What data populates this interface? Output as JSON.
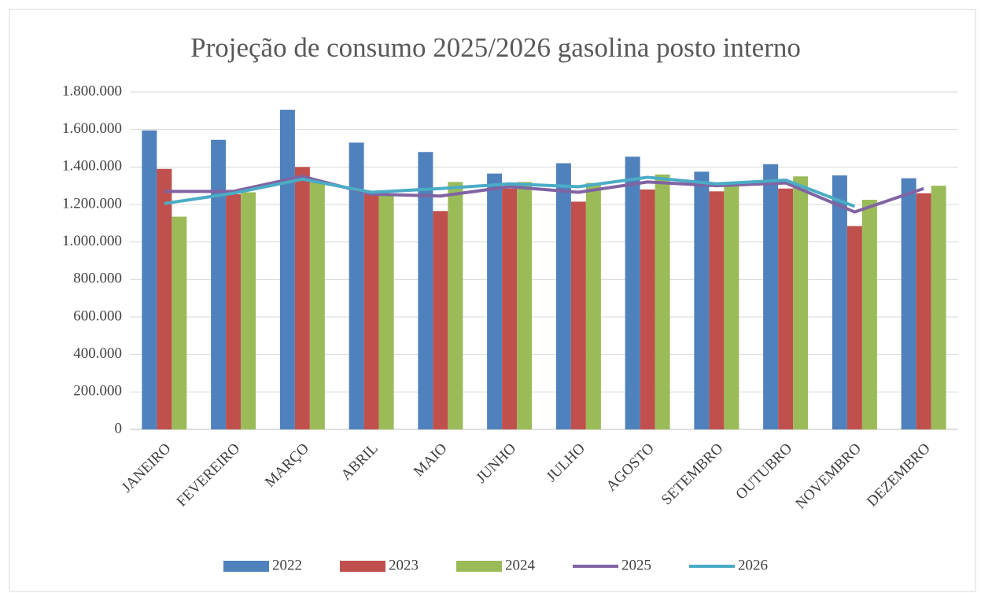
{
  "chart_data": {
    "type": "bar",
    "title": "Projeção de consumo 2025/2026 gasolina posto interno",
    "categories": [
      "JANEIRO",
      "FEVEREIRO",
      "MARÇO",
      "ABRIL",
      "MAIO",
      "JUNHO",
      "JULHO",
      "AGOSTO",
      "SETEMBRO",
      "OUTUBRO",
      "NOVEMBRO",
      "DEZEMBRO"
    ],
    "series": [
      {
        "name": "2022",
        "type": "bar",
        "color": "#4f81bd",
        "values": [
          1595000,
          1545000,
          1705000,
          1530000,
          1480000,
          1365000,
          1420000,
          1455000,
          1375000,
          1415000,
          1355000,
          1340000
        ]
      },
      {
        "name": "2023",
        "type": "bar",
        "color": "#c0504d",
        "values": [
          1390000,
          1255000,
          1400000,
          1255000,
          1165000,
          1285000,
          1215000,
          1280000,
          1270000,
          1285000,
          1085000,
          1260000
        ]
      },
      {
        "name": "2024",
        "type": "bar",
        "color": "#9bbb59",
        "values": [
          1135000,
          1265000,
          1320000,
          1255000,
          1320000,
          1320000,
          1315000,
          1360000,
          1300000,
          1350000,
          1225000,
          1300000
        ]
      },
      {
        "name": "2025",
        "type": "line",
        "color": "#8064a2",
        "values": [
          1270000,
          1270000,
          1350000,
          1255000,
          1245000,
          1295000,
          1265000,
          1320000,
          1300000,
          1315000,
          1160000,
          1285000
        ]
      },
      {
        "name": "2026",
        "type": "line",
        "color": "#4bacc6",
        "values": [
          1205000,
          1260000,
          1335000,
          1265000,
          1285000,
          1310000,
          1295000,
          1345000,
          1310000,
          1330000,
          1190000,
          null
        ]
      }
    ],
    "ylim": [
      0,
      1800000
    ],
    "yticks": [
      0,
      {
        "value": 200000,
        "label": "200.000"
      },
      {
        "value": 400000,
        "label": "400.000"
      },
      {
        "value": 600000,
        "label": "600.000"
      },
      {
        "value": 800000,
        "label": "800.000"
      },
      {
        "value": 1000000,
        "label": "1.000.000"
      },
      {
        "value": 1200000,
        "label": "1.200.000"
      },
      {
        "value": 1400000,
        "label": "1.400.000"
      },
      {
        "value": 1600000,
        "label": "1.600.000"
      },
      {
        "value": 1800000,
        "label": "1.800.000"
      }
    ],
    "grid": true,
    "legend": "bottom"
  }
}
